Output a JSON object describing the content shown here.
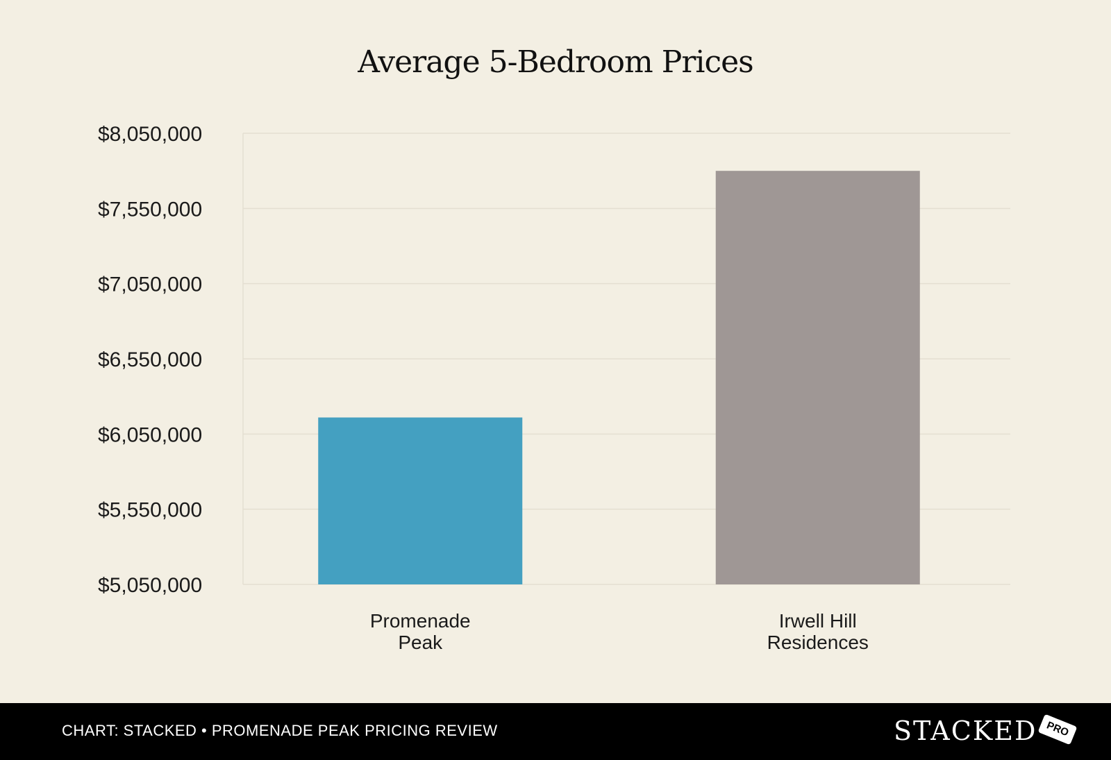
{
  "chart_data": {
    "type": "bar",
    "title": "Average 5-Bedroom Prices",
    "categories": [
      [
        "Promenade",
        "Peak"
      ],
      [
        "Irwell Hill",
        "Residences"
      ]
    ],
    "values": [
      6160000,
      7800000
    ],
    "bar_colors": [
      "#44a0c1",
      "#9f9795"
    ],
    "ylim": [
      5050000,
      8050000
    ],
    "yticks": [
      8050000,
      7550000,
      7050000,
      6550000,
      6050000,
      5550000,
      5050000
    ],
    "ytick_labels": [
      "$8,050,000",
      "$7,550,000",
      "$7,050,000",
      "$6,550,000",
      "$6,050,000",
      "$5,550,000",
      "$5,050,000"
    ],
    "grid": true,
    "xlabel": "",
    "ylabel": ""
  },
  "footer": {
    "caption": "CHART: STACKED • PROMENADE PEAK PRICING REVIEW",
    "logo_text": "STACKED",
    "logo_badge": "PRO"
  }
}
